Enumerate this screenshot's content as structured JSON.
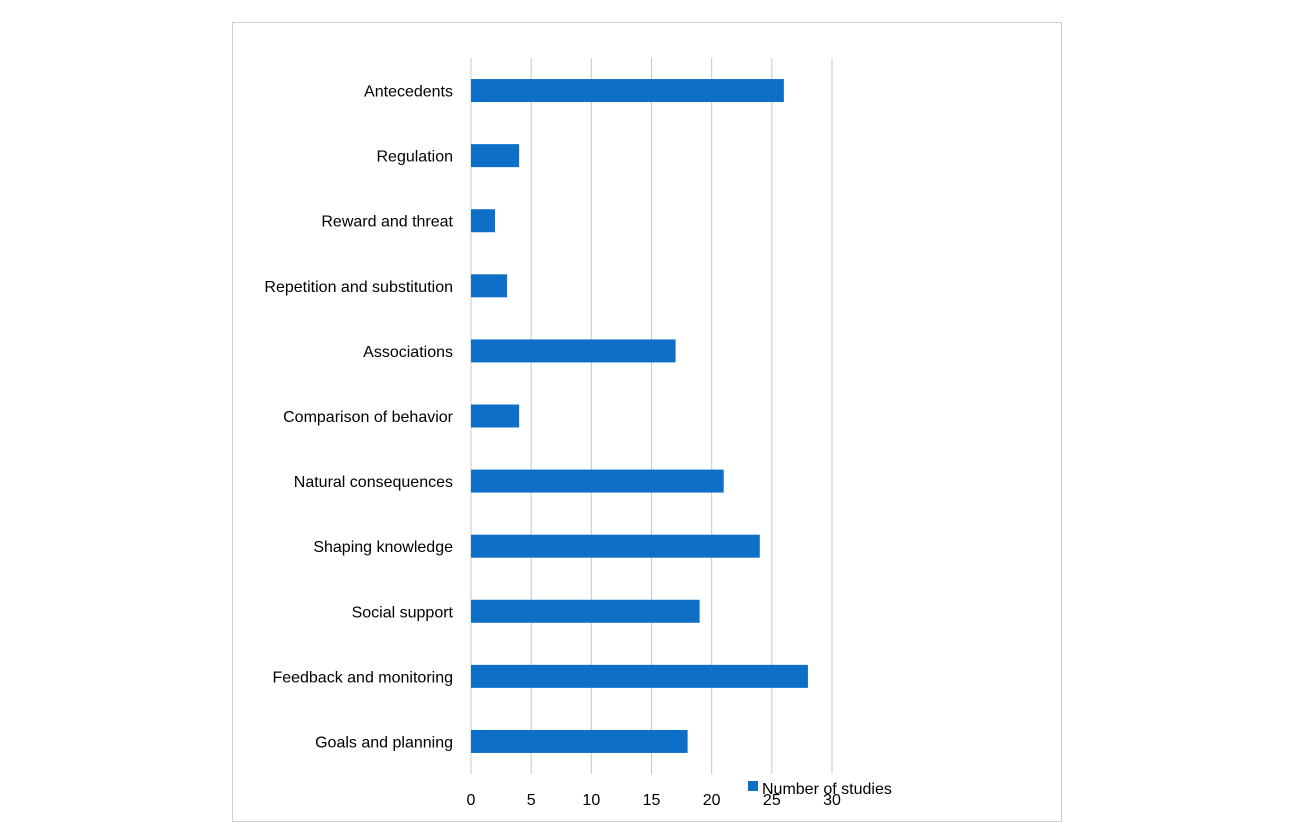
{
  "chart_data": {
    "type": "bar",
    "orientation": "horizontal",
    "categories": [
      "Antecedents",
      "Regulation",
      "Reward and threat",
      "Repetition and substitution",
      "Associations",
      "Comparison of behavior",
      "Natural consequences",
      "Shaping knowledge",
      "Social support",
      "Feedback and monitoring",
      "Goals and planning"
    ],
    "series": [
      {
        "name": "Number of studies",
        "values": [
          26,
          4,
          2,
          3,
          17,
          4,
          21,
          24,
          19,
          28,
          18
        ],
        "color": "#0e6fc6"
      }
    ],
    "xlim": [
      0,
      30
    ],
    "x_ticks": [
      "0",
      "5",
      "10",
      "15",
      "20",
      "25",
      "30"
    ],
    "grid": "vertical",
    "legend": "bottom-right"
  }
}
